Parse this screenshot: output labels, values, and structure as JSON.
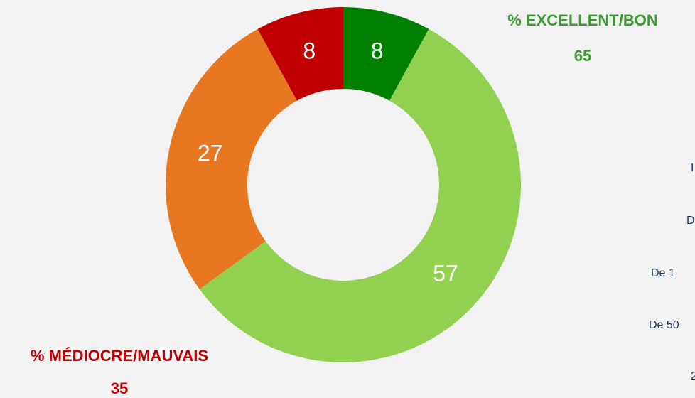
{
  "chart_data": {
    "type": "donut",
    "values": [
      8,
      57,
      27,
      8
    ],
    "colors": [
      "#008000",
      "#92d050",
      "#e87722",
      "#c00000"
    ],
    "summaries": [
      {
        "label": "% EXCELLENT/BON",
        "value": 65,
        "color": "#3a9b2e"
      },
      {
        "label": "% MÉDIOCRE/MAUVAIS",
        "value": 35,
        "color": "#c00000"
      }
    ],
    "side_labels": [
      "I",
      "D",
      "De 1",
      "De 50",
      "2"
    ]
  }
}
